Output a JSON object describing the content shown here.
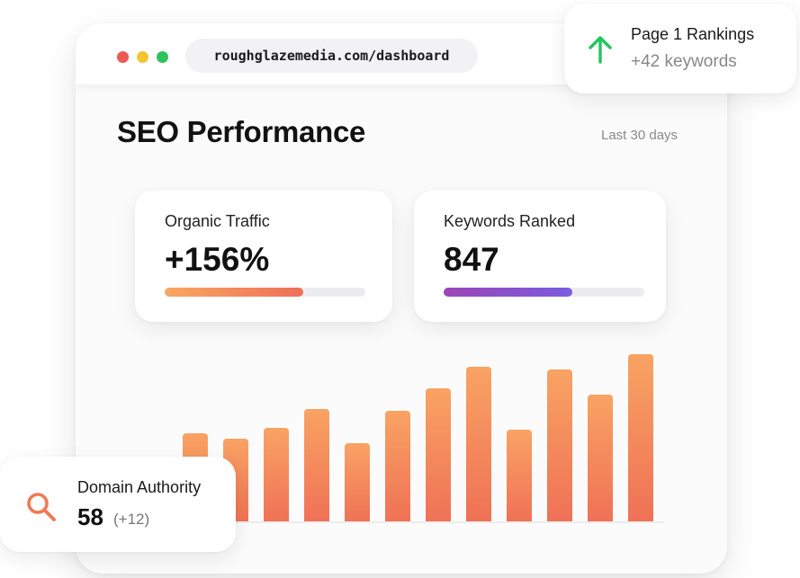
{
  "browser": {
    "url": "roughglazemedia.com/dashboard"
  },
  "header": {
    "title": "SEO Performance",
    "period": "Last 30 days"
  },
  "metrics": [
    {
      "label": "Organic Traffic",
      "value": "+156%",
      "progress": 0.69,
      "color": "orange"
    },
    {
      "label": "Keywords Ranked",
      "value": "847",
      "progress": 0.64,
      "color": "purple"
    }
  ],
  "rankings": {
    "title": "Page 1 Rankings",
    "sub": "+42 keywords",
    "icon": "arrow-up-icon",
    "icon_color": "#22c55e"
  },
  "authority": {
    "label": "Domain Authority",
    "value": "58",
    "change": "(+12)",
    "icon": "search-icon",
    "icon_color": "#ef7a55"
  },
  "chart_data": {
    "type": "bar",
    "values": [
      100,
      94,
      106,
      127,
      89,
      125,
      150,
      174,
      104,
      171,
      143,
      188
    ],
    "colors": [
      "#f9a363",
      "#ef7156"
    ],
    "ylim": [
      0,
      196
    ]
  }
}
